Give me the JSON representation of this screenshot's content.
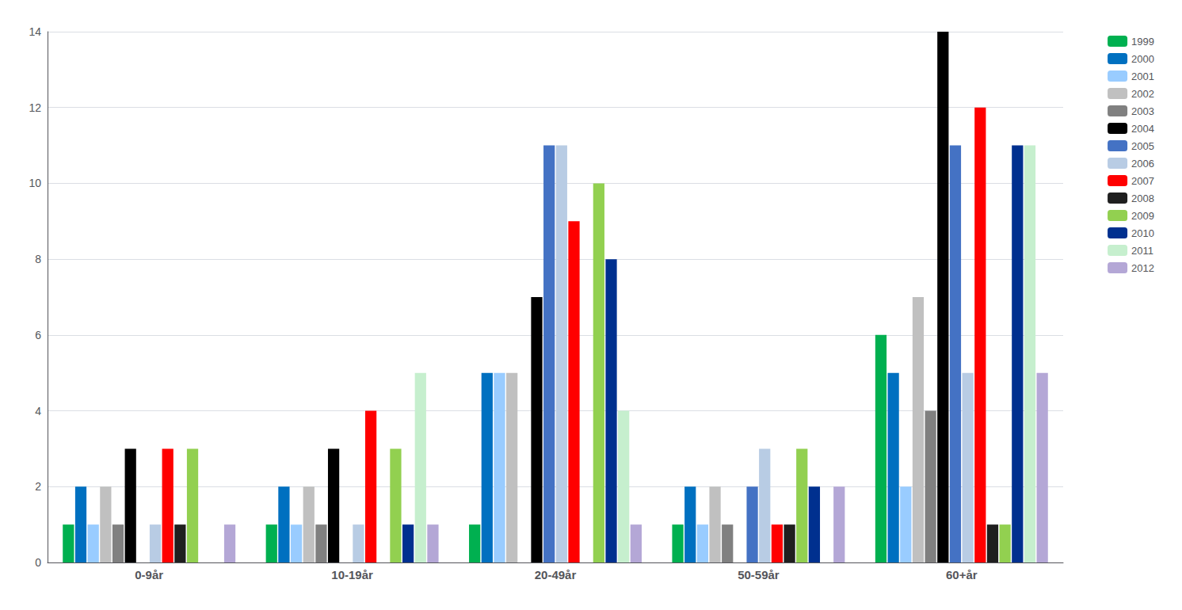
{
  "chart_data": {
    "type": "bar",
    "categories": [
      "0-9år",
      "10-19år",
      "20-49år",
      "50-59år",
      "60+år"
    ],
    "series": [
      {
        "name": "1999",
        "color": "#00B050",
        "values": [
          1,
          1,
          1,
          1,
          6
        ]
      },
      {
        "name": "2000",
        "color": "#0070C0",
        "values": [
          2,
          2,
          5,
          2,
          5
        ]
      },
      {
        "name": "2001",
        "color": "#99CCFF",
        "values": [
          1,
          1,
          5,
          1,
          2
        ]
      },
      {
        "name": "2002",
        "color": "#C0C0C0",
        "values": [
          2,
          2,
          5,
          2,
          7
        ]
      },
      {
        "name": "2003",
        "color": "#808080",
        "values": [
          1,
          1,
          0,
          1,
          4
        ]
      },
      {
        "name": "2004",
        "color": "#000000",
        "values": [
          3,
          3,
          7,
          0,
          14
        ]
      },
      {
        "name": "2005",
        "color": "#4472C4",
        "values": [
          0,
          0,
          11,
          2,
          11
        ]
      },
      {
        "name": "2006",
        "color": "#B8CCE4",
        "values": [
          1,
          1,
          11,
          3,
          5
        ]
      },
      {
        "name": "2007",
        "color": "#FF0000",
        "values": [
          3,
          4,
          9,
          1,
          12
        ]
      },
      {
        "name": "2008",
        "color": "#1F1F1F",
        "values": [
          1,
          0,
          0,
          1,
          1
        ]
      },
      {
        "name": "2009",
        "color": "#92D050",
        "values": [
          3,
          3,
          10,
          3,
          1
        ]
      },
      {
        "name": "2010",
        "color": "#00308F",
        "values": [
          0,
          1,
          8,
          2,
          11
        ]
      },
      {
        "name": "2011",
        "color": "#C6EFCE",
        "values": [
          0,
          5,
          4,
          0,
          11
        ]
      },
      {
        "name": "2012",
        "color": "#B4A7D6",
        "values": [
          1,
          1,
          1,
          2,
          5
        ]
      }
    ],
    "ylim": [
      0,
      14
    ],
    "yticks": [
      0,
      2,
      4,
      6,
      8,
      10,
      12,
      14
    ],
    "grid": true,
    "legend": "right"
  }
}
